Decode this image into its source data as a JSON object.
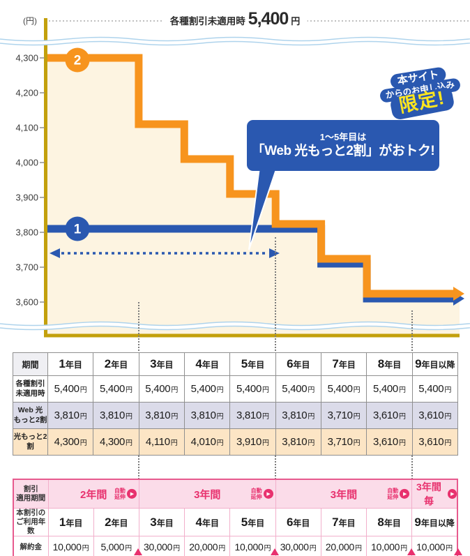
{
  "chart": {
    "unit_label": "(円)",
    "top_label": {
      "text": "各種割引未適用時",
      "price": "5,400",
      "unit": "円"
    },
    "limited_badge": {
      "line1": "本サイト",
      "line2": "からのお申し込み",
      "line3": "限定!"
    },
    "callout": {
      "line1": "1〜5年目は",
      "line2": "「Web 光もっと2割」がおトク!"
    }
  },
  "chart_data": {
    "type": "line",
    "subtype": "step",
    "title": "各種割引未適用時 5,400円",
    "ylabel": "(円)",
    "categories": [
      "1年目",
      "2年目",
      "3年目",
      "4年目",
      "5年目",
      "6年目",
      "7年目",
      "8年目",
      "9年目以降"
    ],
    "series": [
      {
        "name": "Web 光もっと2割",
        "marker_label": "1",
        "color": "#2a58b0",
        "values": [
          3810,
          3810,
          3810,
          3810,
          3810,
          3810,
          3710,
          3610,
          3610
        ]
      },
      {
        "name": "光もっと2割",
        "marker_label": "2",
        "color": "#f7941e",
        "values": [
          4300,
          4300,
          4110,
          4010,
          3910,
          3810,
          3710,
          3610,
          3610
        ]
      }
    ],
    "yticks": [
      4300,
      4200,
      4100,
      4000,
      3900,
      3800,
      3700,
      3600
    ],
    "reference_line": {
      "label": "各種割引未適用時",
      "value": 5400
    },
    "ylim_display": [
      3510,
      4350
    ],
    "legend_position": "on-line-markers",
    "grid": false,
    "fill_under_color": "#fdf4e1",
    "annotations": [
      "1〜5年目は「Web 光もっと2割」がおトク!",
      "本サイトからのお申し込み限定!"
    ],
    "span_arrow_years": [
      1,
      5
    ]
  },
  "price_table": {
    "corner": "期間",
    "col_headers": [
      "1年目",
      "2年目",
      "3年目",
      "4年目",
      "5年目",
      "6年目",
      "7年目",
      "8年目",
      "9年目以降"
    ],
    "unit": "円",
    "rows": [
      {
        "label_lines": [
          "各種割引",
          "未適用時"
        ],
        "style": "plain",
        "values": [
          "5,400",
          "5,400",
          "5,400",
          "5,400",
          "5,400",
          "5,400",
          "5,400",
          "5,400",
          "5,400"
        ]
      },
      {
        "label_lines": [
          "Web 光",
          "もっと2割"
        ],
        "style": "lavender",
        "values": [
          "3,810",
          "3,810",
          "3,810",
          "3,810",
          "3,810",
          "3,810",
          "3,710",
          "3,610",
          "3,610"
        ]
      },
      {
        "label_lines": [
          "光もっと2",
          "割"
        ],
        "style": "orange",
        "values": [
          "4,300",
          "4,300",
          "4,110",
          "4,010",
          "3,910",
          "3,810",
          "3,710",
          "3,610",
          "3,610"
        ]
      }
    ]
  },
  "cancel_table": {
    "period_row": {
      "label_lines": [
        "割引",
        "適用期間"
      ],
      "spans": [
        {
          "text": "2年間",
          "cols": 2,
          "extension_lines": [
            "自動",
            "延伸"
          ],
          "play_icon": "▶"
        },
        {
          "text": "3年間",
          "cols": 3,
          "extension_lines": [
            "自動",
            "延伸"
          ],
          "play_icon": "▶"
        },
        {
          "text": "3年間",
          "cols": 3,
          "extension_lines": [
            "自動",
            "延伸"
          ],
          "play_icon": "▶"
        },
        {
          "text": "3年間毎",
          "cols": 1,
          "play_icon": "▶"
        }
      ]
    },
    "years_row": {
      "label_lines": [
        "本割引の",
        "ご利用年数"
      ],
      "values": [
        "1年目",
        "2年目",
        "3年目",
        "4年目",
        "5年目",
        "6年目",
        "7年目",
        "8年目",
        "9年目以降"
      ]
    },
    "fee_row": {
      "label": "解約金",
      "unit": "円",
      "values": [
        "10,000",
        "5,000",
        "30,000",
        "20,000",
        "10,000",
        "30,000",
        "20,000",
        "10,000",
        "10,000"
      ]
    }
  },
  "colors": {
    "blue_line": "#2a58b0",
    "orange_line": "#f7941e",
    "fill_cream": "#fdf4e1",
    "axis_gold": "#c3a00c",
    "wave_blue": "#aed3ec",
    "pink_accent": "#e8316e",
    "pink_border": "#e75a8e",
    "pink_cell": "#fbdce9",
    "pink_label": "#f8cfe0",
    "lavender_row": "#dbdbe9",
    "orange_row": "#fce5c5",
    "gray_border": "#8f8f8f"
  }
}
